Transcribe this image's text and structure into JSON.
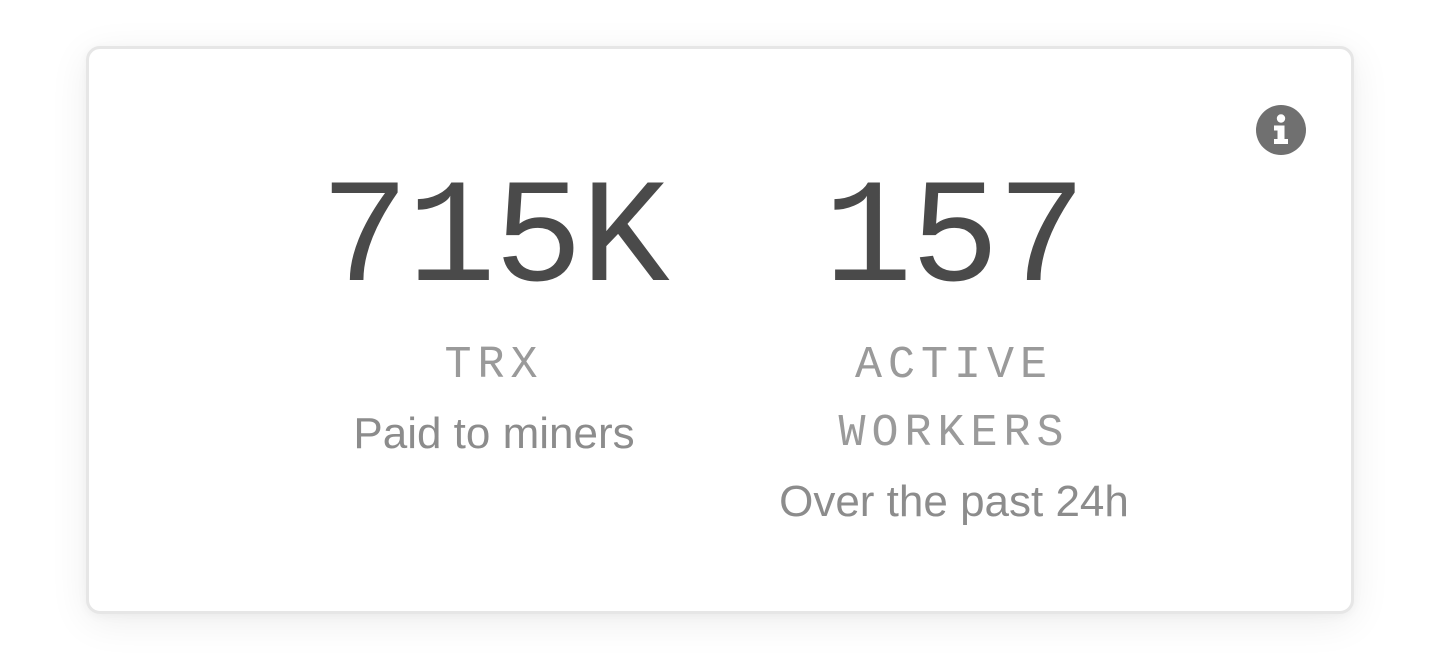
{
  "card": {
    "info_icon": "info-icon",
    "stats": [
      {
        "value": "715K",
        "unit_lines": [
          "TRX"
        ],
        "caption": "Paid to miners"
      },
      {
        "value": "157",
        "unit_lines": [
          "ACTIVE",
          "WORKERS"
        ],
        "caption": "Over the past 24h"
      }
    ]
  },
  "colors": {
    "value_text": "#4a4a4a",
    "unit_text": "#9a9a9a",
    "caption_text": "#8c8c8c",
    "icon_bg": "#707070",
    "card_border": "#e6e6e6"
  }
}
